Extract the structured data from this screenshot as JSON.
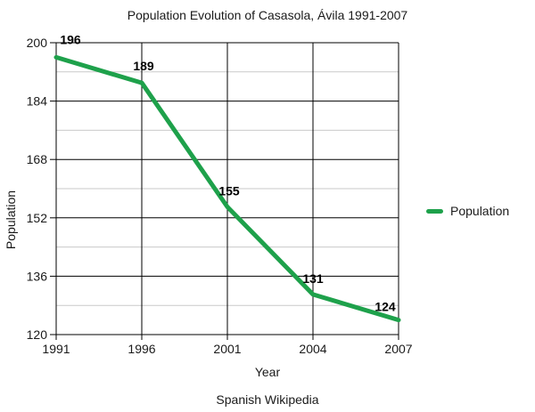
{
  "title": "Population Evolution of Casasola, Ávila 1991-2007",
  "source_note": "Spanish Wikipedia",
  "colors": {
    "line": "#1EA14B",
    "major_grid": "#000000",
    "minor_grid": "#c9c9c9",
    "text": "#1a1a1a"
  },
  "legend": {
    "label": "Population",
    "position": "right"
  },
  "chart_data": {
    "type": "line",
    "title": "Population Evolution of Casasola, Ávila 1991-2007",
    "xlabel": "Year",
    "ylabel": "Population",
    "categories": [
      "1991",
      "1996",
      "2001",
      "2004",
      "2007"
    ],
    "series": [
      {
        "name": "Population",
        "values": [
          196,
          189,
          155,
          131,
          124
        ]
      }
    ],
    "ylim": [
      120,
      200
    ],
    "yticks": [
      120,
      136,
      152,
      168,
      184,
      200
    ],
    "minor_yticks": [
      128,
      144,
      160,
      176,
      192
    ],
    "grid": true,
    "data_labels": [
      196,
      189,
      155,
      131,
      124
    ],
    "legend_position": "right"
  }
}
